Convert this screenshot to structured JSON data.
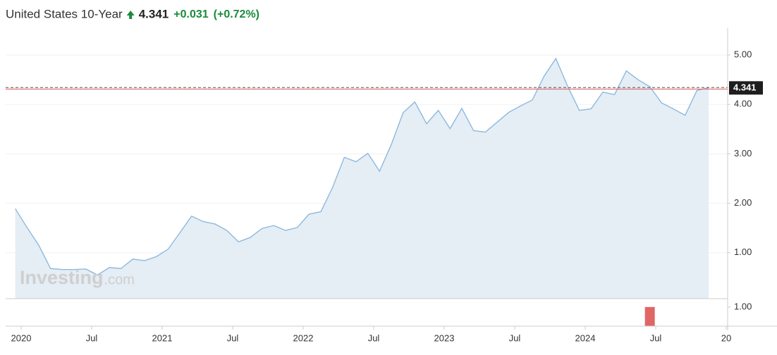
{
  "chart_data": [
    {
      "type": "area",
      "title": "United States 10-Year",
      "last_value": 4.341,
      "change": {
        "value": 0.031,
        "label": "+0.031"
      },
      "change_percent": {
        "value": 0.72,
        "label": "(+0.72%)"
      },
      "previous_close": 4.31,
      "watermark": {
        "brand": "Investing",
        "suffix": ".com"
      },
      "x": [
        "2019-12",
        "2020-01",
        "2020-02",
        "2020-03",
        "2020-04",
        "2020-05",
        "2020-06",
        "2020-07",
        "2020-08",
        "2020-09",
        "2020-10",
        "2020-11",
        "2020-12",
        "2021-01",
        "2021-02",
        "2021-03",
        "2021-04",
        "2021-05",
        "2021-06",
        "2021-07",
        "2021-08",
        "2021-09",
        "2021-10",
        "2021-11",
        "2021-12",
        "2022-01",
        "2022-02",
        "2022-03",
        "2022-04",
        "2022-05",
        "2022-06",
        "2022-07",
        "2022-08",
        "2022-09",
        "2022-10",
        "2022-11",
        "2022-12",
        "2023-01",
        "2023-02",
        "2023-03",
        "2023-04",
        "2023-05",
        "2023-06",
        "2023-07",
        "2023-08",
        "2023-09",
        "2023-10",
        "2023-11",
        "2023-12",
        "2024-01",
        "2024-02",
        "2024-03",
        "2024-04",
        "2024-05",
        "2024-06",
        "2024-07",
        "2024-08",
        "2024-09",
        "2024-10",
        "2024-11"
      ],
      "values": [
        1.89,
        1.51,
        1.15,
        0.68,
        0.66,
        0.66,
        0.67,
        0.55,
        0.7,
        0.68,
        0.87,
        0.84,
        0.92,
        1.07,
        1.4,
        1.74,
        1.63,
        1.58,
        1.45,
        1.22,
        1.31,
        1.49,
        1.55,
        1.45,
        1.51,
        1.78,
        1.83,
        2.32,
        2.93,
        2.84,
        3.01,
        2.65,
        3.19,
        3.83,
        4.05,
        3.61,
        3.88,
        3.51,
        3.92,
        3.47,
        3.44,
        3.64,
        3.84,
        3.97,
        4.09,
        4.57,
        4.93,
        4.37,
        3.88,
        3.91,
        4.25,
        4.2,
        4.68,
        4.5,
        4.36,
        4.03,
        3.91,
        3.78,
        4.28,
        4.34
      ],
      "color": "#86b6dc",
      "fill_color": "#e5edf5",
      "ylim": [
        0.07,
        5.4
      ],
      "yticks": [
        {
          "value": 1,
          "label": "1.00"
        },
        {
          "value": 2,
          "label": "2.00"
        },
        {
          "value": 3,
          "label": "3.00"
        },
        {
          "value": 4,
          "label": "4.00"
        },
        {
          "value": 5,
          "label": "5.00"
        }
      ],
      "xticks": [
        {
          "value": "2020-01",
          "label": "2020"
        },
        {
          "value": "2020-07",
          "label": "Jul"
        },
        {
          "value": "2021-01",
          "label": "2021"
        },
        {
          "value": "2021-07",
          "label": "Jul"
        },
        {
          "value": "2022-01",
          "label": "2022"
        },
        {
          "value": "2022-07",
          "label": "Jul"
        },
        {
          "value": "2023-01",
          "label": "2023"
        },
        {
          "value": "2023-07",
          "label": "Jul"
        },
        {
          "value": "2024-01",
          "label": "2024"
        },
        {
          "value": "2024-07",
          "label": "Jul"
        },
        {
          "value": "2025-01",
          "label": "20"
        }
      ],
      "grid": true
    },
    {
      "type": "bar",
      "x": [
        "2024-06"
      ],
      "values": [
        1
      ],
      "color": "#e06666",
      "ylim": [
        0,
        1.4
      ],
      "yticks": [
        {
          "value": 1,
          "label": "1.00"
        }
      ]
    }
  ]
}
